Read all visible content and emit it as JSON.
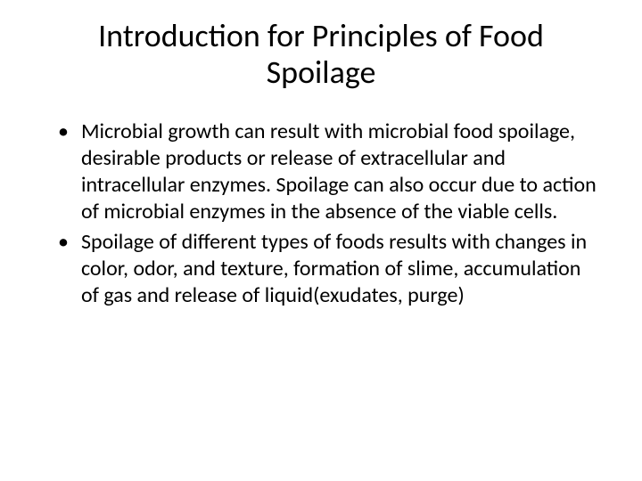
{
  "slide": {
    "title": "Introduction for Principles of Food Spoilage",
    "bullets": [
      {
        "marker": "•",
        "text": "Microbial growth can result with microbial food spoilage, desirable products or release of extracellular and intracellular enzymes. Spoilage can also occur due to action of microbial enzymes in the absence of the viable cells."
      },
      {
        "marker": "•",
        "text": "Spoilage of different types of foods results with changes in color, odor, and texture, formation of slime, accumulation of gas and release of liquid(exudates, purge)"
      }
    ]
  },
  "styling": {
    "background_color": "#ffffff",
    "text_color": "#000000",
    "title_fontsize": 36,
    "body_fontsize": 24,
    "font_family": "Calibri"
  }
}
